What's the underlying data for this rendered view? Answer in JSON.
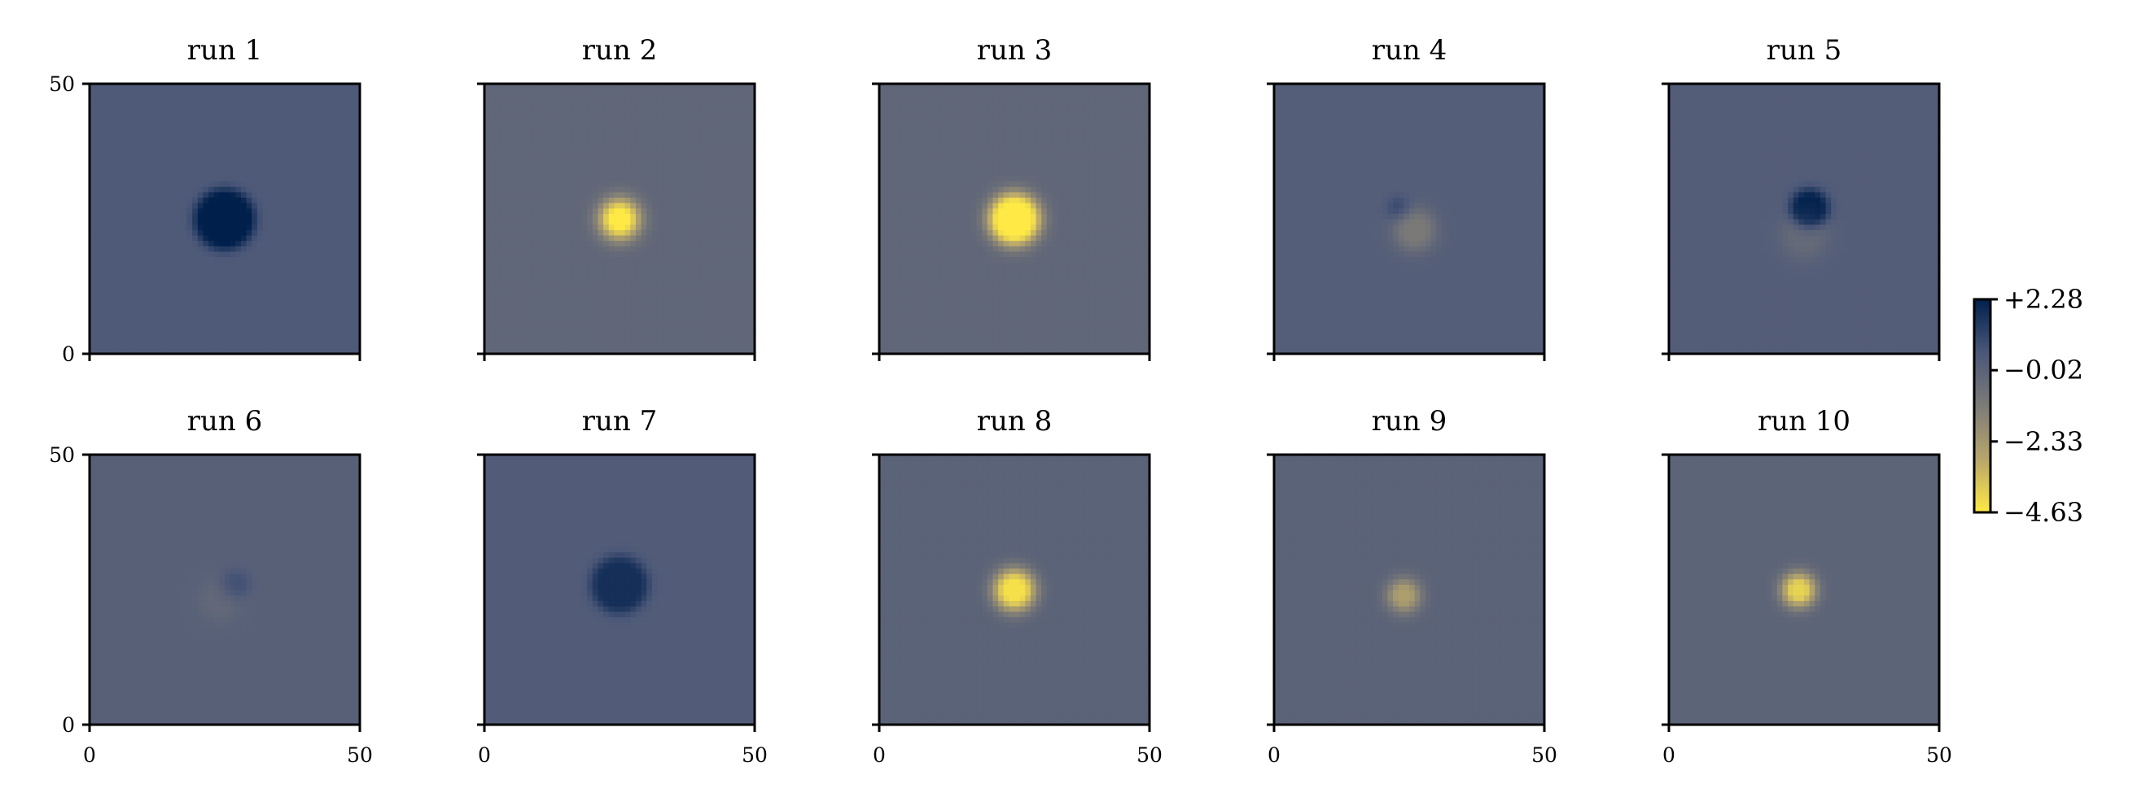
{
  "chart_data": {
    "type": "heatmap",
    "layout": {
      "rows": 2,
      "cols": 5
    },
    "x_range": [
      0,
      50
    ],
    "y_range": [
      0,
      50
    ],
    "x_ticks": [
      "0",
      "50"
    ],
    "y_ticks": [
      "0",
      "50"
    ],
    "colorbar": {
      "range": [
        -4.63,
        2.28
      ],
      "ticks": [
        2.28,
        -0.02,
        -2.33,
        -4.63
      ],
      "tick_labels": [
        "+2.28",
        "−0.02",
        "−2.33",
        "−4.63"
      ],
      "colormap": [
        "#ffe945",
        "#b7a66c",
        "#7c7b78",
        "#4b5778",
        "#00204c"
      ]
    },
    "panels": [
      {
        "title": "run 1",
        "background": 0.4,
        "blobs": [
          {
            "cx": 25,
            "cy": 25,
            "r": 6,
            "amp": 1.95,
            "core": 0.7
          }
        ]
      },
      {
        "title": "run 2",
        "background": -0.2,
        "blobs": [
          {
            "cx": 25,
            "cy": 25,
            "r": 5,
            "amp": -4.5,
            "core": 0.25
          }
        ]
      },
      {
        "title": "run 3",
        "background": -0.2,
        "blobs": [
          {
            "cx": 25,
            "cy": 25,
            "r": 6,
            "amp": -4.6,
            "core": 0.45
          }
        ]
      },
      {
        "title": "run 4",
        "background": 0.2,
        "blobs": [
          {
            "cx": 23,
            "cy": 27,
            "r": 2.5,
            "amp": 0.8,
            "core": 0.2
          },
          {
            "cx": 26,
            "cy": 23,
            "r": 5,
            "amp": -1.3,
            "core": 0.3
          }
        ]
      },
      {
        "title": "run 5",
        "background": 0.25,
        "blobs": [
          {
            "cx": 26,
            "cy": 27,
            "r": 4,
            "amp": 2.0,
            "core": 0.5
          },
          {
            "cx": 25,
            "cy": 22,
            "r": 6,
            "amp": -0.6,
            "core": 0.3
          }
        ]
      },
      {
        "title": "run 6",
        "background": 0.1,
        "blobs": [
          {
            "cx": 27,
            "cy": 26,
            "r": 3,
            "amp": 0.7,
            "core": 0.3
          },
          {
            "cx": 24,
            "cy": 23,
            "r": 5,
            "amp": -0.35,
            "core": 0.3
          }
        ]
      },
      {
        "title": "run 7",
        "background": 0.3,
        "blobs": [
          {
            "cx": 25,
            "cy": 26,
            "r": 6,
            "amp": 1.5,
            "core": 0.6
          }
        ]
      },
      {
        "title": "run 8",
        "background": 0.0,
        "blobs": [
          {
            "cx": 25,
            "cy": 25,
            "r": 5,
            "amp": -4.4,
            "core": 0.3
          }
        ]
      },
      {
        "title": "run 9",
        "background": 0.0,
        "blobs": [
          {
            "cx": 24,
            "cy": 24,
            "r": 4,
            "amp": -2.6,
            "core": 0.2
          }
        ]
      },
      {
        "title": "run 10",
        "background": -0.05,
        "blobs": [
          {
            "cx": 24,
            "cy": 25,
            "r": 4,
            "amp": -4.0,
            "core": 0.25
          }
        ]
      }
    ]
  }
}
